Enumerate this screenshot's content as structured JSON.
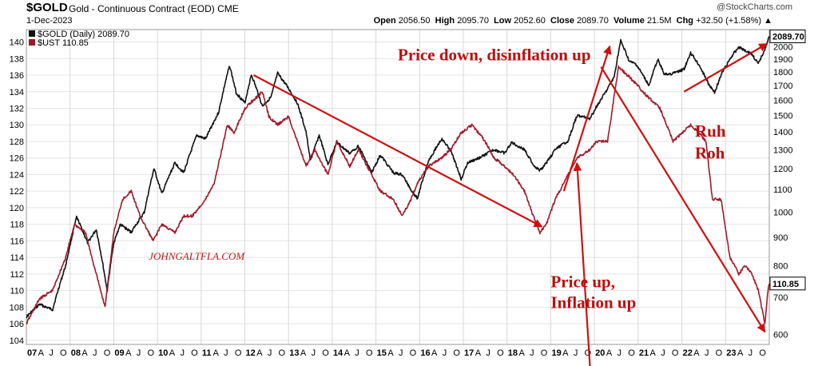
{
  "header": {
    "symbol": "$GOLD",
    "name": "Gold - Continuous Contract (EOD)",
    "exchange": "CME",
    "date": "1-Dec-2023",
    "watermark": "@StockCharts.com",
    "quote": {
      "open_label": "Open",
      "open": "2056.50",
      "high_label": "High",
      "high": "2095.70",
      "low_label": "Low",
      "low": "2052.60",
      "close_label": "Close",
      "close": "2089.70",
      "volume_label": "Volume",
      "volume": "21.5M",
      "chg_label": "Chg",
      "chg": "+32.50 (+1.58%)",
      "chg_arrow": "▲"
    }
  },
  "legend": {
    "gold": "$GOLD (Daily) 2089.70",
    "ust": "$UST 110.85"
  },
  "chart_data": {
    "type": "line",
    "title": "$GOLD Gold - Continuous Contract (EOD) CME",
    "x_tick_labels": [
      "07",
      "A",
      "J",
      "O",
      "08",
      "A",
      "J",
      "O",
      "09",
      "A",
      "J",
      "O",
      "10",
      "A",
      "J",
      "O",
      "11",
      "A",
      "J",
      "O",
      "12",
      "A",
      "J",
      "O",
      "13",
      "A",
      "J",
      "O",
      "14",
      "A",
      "J",
      "O",
      "15",
      "A",
      "J",
      "O",
      "16",
      "A",
      "J",
      "O",
      "17",
      "A",
      "J",
      "O",
      "18",
      "A",
      "J",
      "O",
      "19",
      "A",
      "J",
      "O",
      "20",
      "A",
      "J",
      "O",
      "21",
      "A",
      "J",
      "O",
      "22",
      "A",
      "J",
      "O",
      "23",
      "A",
      "J",
      "O"
    ],
    "x_range": [
      2007.0,
      2024.0
    ],
    "left_axis": {
      "label": "$UST",
      "ticks": [
        104,
        106,
        108,
        110,
        112,
        114,
        116,
        118,
        120,
        122,
        124,
        126,
        128,
        130,
        132,
        134,
        136,
        138,
        140
      ],
      "range": [
        103.5,
        141.5
      ]
    },
    "right_axis": {
      "label": "$GOLD",
      "ticks": [
        600,
        700,
        800,
        900,
        1000,
        1100,
        1200,
        1300,
        1400,
        1500,
        1600,
        1700,
        1800,
        1900,
        2000
      ],
      "scale": "log",
      "range": [
        575,
        2150
      ]
    },
    "last_value_labels": {
      "gold": "2089.70",
      "ust": "110.85"
    },
    "series": [
      {
        "name": "$GOLD (Daily)",
        "axis": "right",
        "color": "#111111",
        "points": [
          [
            2007.0,
            645
          ],
          [
            2007.3,
            680
          ],
          [
            2007.6,
            665
          ],
          [
            2007.9,
            800
          ],
          [
            2008.15,
            980
          ],
          [
            2008.4,
            880
          ],
          [
            2008.6,
            930
          ],
          [
            2008.85,
            720
          ],
          [
            2009.0,
            880
          ],
          [
            2009.15,
            950
          ],
          [
            2009.4,
            920
          ],
          [
            2009.7,
            1000
          ],
          [
            2009.92,
            1200
          ],
          [
            2010.1,
            1080
          ],
          [
            2010.4,
            1230
          ],
          [
            2010.6,
            1180
          ],
          [
            2010.9,
            1380
          ],
          [
            2011.1,
            1360
          ],
          [
            2011.4,
            1520
          ],
          [
            2011.65,
            1850
          ],
          [
            2011.8,
            1650
          ],
          [
            2012.0,
            1580
          ],
          [
            2012.15,
            1780
          ],
          [
            2012.4,
            1560
          ],
          [
            2012.6,
            1620
          ],
          [
            2012.75,
            1790
          ],
          [
            2013.0,
            1680
          ],
          [
            2013.2,
            1580
          ],
          [
            2013.4,
            1400
          ],
          [
            2013.5,
            1240
          ],
          [
            2013.7,
            1380
          ],
          [
            2013.9,
            1220
          ],
          [
            2014.1,
            1340
          ],
          [
            2014.4,
            1280
          ],
          [
            2014.6,
            1320
          ],
          [
            2014.9,
            1180
          ],
          [
            2015.1,
            1270
          ],
          [
            2015.4,
            1180
          ],
          [
            2015.6,
            1170
          ],
          [
            2015.8,
            1100
          ],
          [
            2015.95,
            1060
          ],
          [
            2016.2,
            1240
          ],
          [
            2016.5,
            1360
          ],
          [
            2016.7,
            1300
          ],
          [
            2016.95,
            1150
          ],
          [
            2017.1,
            1230
          ],
          [
            2017.4,
            1260
          ],
          [
            2017.7,
            1300
          ],
          [
            2017.95,
            1280
          ],
          [
            2018.1,
            1340
          ],
          [
            2018.4,
            1300
          ],
          [
            2018.6,
            1220
          ],
          [
            2018.75,
            1190
          ],
          [
            2018.9,
            1230
          ],
          [
            2019.1,
            1300
          ],
          [
            2019.4,
            1350
          ],
          [
            2019.6,
            1500
          ],
          [
            2019.9,
            1480
          ],
          [
            2020.05,
            1560
          ],
          [
            2020.25,
            1650
          ],
          [
            2020.45,
            1760
          ],
          [
            2020.6,
            2050
          ],
          [
            2020.8,
            1880
          ],
          [
            2020.95,
            1860
          ],
          [
            2021.1,
            1780
          ],
          [
            2021.25,
            1700
          ],
          [
            2021.45,
            1900
          ],
          [
            2021.6,
            1780
          ],
          [
            2021.8,
            1790
          ],
          [
            2022.05,
            1820
          ],
          [
            2022.2,
            1950
          ],
          [
            2022.4,
            1850
          ],
          [
            2022.6,
            1720
          ],
          [
            2022.75,
            1650
          ],
          [
            2022.9,
            1780
          ],
          [
            2023.1,
            1900
          ],
          [
            2023.3,
            2000
          ],
          [
            2023.4,
            1980
          ],
          [
            2023.6,
            1940
          ],
          [
            2023.75,
            1860
          ],
          [
            2023.92,
            2000
          ],
          [
            2024.0,
            2089.7
          ]
        ]
      },
      {
        "name": "$UST",
        "axis": "left",
        "color": "#a01a2a",
        "points": [
          [
            2007.0,
            106
          ],
          [
            2007.3,
            109
          ],
          [
            2007.6,
            110
          ],
          [
            2007.9,
            114
          ],
          [
            2008.1,
            118
          ],
          [
            2008.35,
            117
          ],
          [
            2008.55,
            113
          ],
          [
            2008.8,
            108
          ],
          [
            2009.0,
            117
          ],
          [
            2009.2,
            121
          ],
          [
            2009.4,
            122
          ],
          [
            2009.6,
            119
          ],
          [
            2009.9,
            116
          ],
          [
            2010.1,
            118
          ],
          [
            2010.4,
            117
          ],
          [
            2010.6,
            119
          ],
          [
            2010.8,
            119
          ],
          [
            2011.1,
            121
          ],
          [
            2011.3,
            123
          ],
          [
            2011.6,
            130
          ],
          [
            2011.75,
            129
          ],
          [
            2012.0,
            132
          ],
          [
            2012.2,
            133
          ],
          [
            2012.4,
            134
          ],
          [
            2012.55,
            131
          ],
          [
            2012.75,
            130
          ],
          [
            2013.0,
            131
          ],
          [
            2013.2,
            128
          ],
          [
            2013.4,
            125
          ],
          [
            2013.6,
            127
          ],
          [
            2013.9,
            124
          ],
          [
            2014.1,
            128
          ],
          [
            2014.4,
            125
          ],
          [
            2014.6,
            127
          ],
          [
            2014.9,
            124
          ],
          [
            2015.1,
            122
          ],
          [
            2015.4,
            121
          ],
          [
            2015.6,
            119
          ],
          [
            2015.8,
            121
          ],
          [
            2015.95,
            123
          ],
          [
            2016.2,
            125
          ],
          [
            2016.5,
            126
          ],
          [
            2016.7,
            127
          ],
          [
            2016.95,
            129
          ],
          [
            2017.2,
            130
          ],
          [
            2017.5,
            128
          ],
          [
            2017.7,
            126
          ],
          [
            2017.95,
            125
          ],
          [
            2018.15,
            124
          ],
          [
            2018.4,
            122
          ],
          [
            2018.6,
            119
          ],
          [
            2018.75,
            117
          ],
          [
            2018.9,
            118
          ],
          [
            2019.1,
            121
          ],
          [
            2019.3,
            123
          ],
          [
            2019.6,
            126
          ],
          [
            2019.9,
            127
          ],
          [
            2020.05,
            128
          ],
          [
            2020.3,
            128
          ],
          [
            2020.55,
            137
          ],
          [
            2020.75,
            136
          ],
          [
            2020.95,
            135
          ],
          [
            2021.1,
            134
          ],
          [
            2021.3,
            133
          ],
          [
            2021.5,
            132
          ],
          [
            2021.8,
            128
          ],
          [
            2022.0,
            129
          ],
          [
            2022.2,
            130
          ],
          [
            2022.4,
            129
          ],
          [
            2022.55,
            128
          ],
          [
            2022.7,
            121
          ],
          [
            2022.9,
            121
          ],
          [
            2023.1,
            114
          ],
          [
            2023.3,
            112
          ],
          [
            2023.45,
            113
          ],
          [
            2023.6,
            112
          ],
          [
            2023.75,
            110
          ],
          [
            2023.9,
            106
          ],
          [
            2023.97,
            110
          ],
          [
            2024.0,
            110.85
          ]
        ]
      }
    ],
    "annotations": [
      {
        "text": "Price down, disinflation up",
        "at": [
          2015.5,
          137.8
        ]
      },
      {
        "text": "Price up,",
        "at": [
          2019.0,
          110.4
        ]
      },
      {
        "text": "Inflation up",
        "at": [
          2019.0,
          107.9
        ]
      },
      {
        "text": "Ruh",
        "at": [
          2022.3,
          128.6
        ]
      },
      {
        "text": "Roh",
        "at": [
          2022.3,
          125.9
        ]
      },
      {
        "text": "JOHNGALTFLA.COM",
        "at": [
          2009.8,
          113.7
        ]
      }
    ],
    "arrows": [
      {
        "from": [
          2012.2,
          136.0
        ],
        "to": [
          2018.8,
          117.7
        ]
      },
      {
        "from": [
          2019.9,
          100.6
        ],
        "to": [
          2019.6,
          125.4
        ]
      },
      {
        "from": [
          2019.3,
          122.0
        ],
        "to": [
          2020.35,
          139.5
        ]
      },
      {
        "from": [
          2020.15,
          137.0
        ],
        "to": [
          2023.9,
          105.0
        ]
      },
      {
        "from": [
          2022.05,
          134.0
        ],
        "to": [
          2023.95,
          139.8
        ]
      }
    ]
  }
}
